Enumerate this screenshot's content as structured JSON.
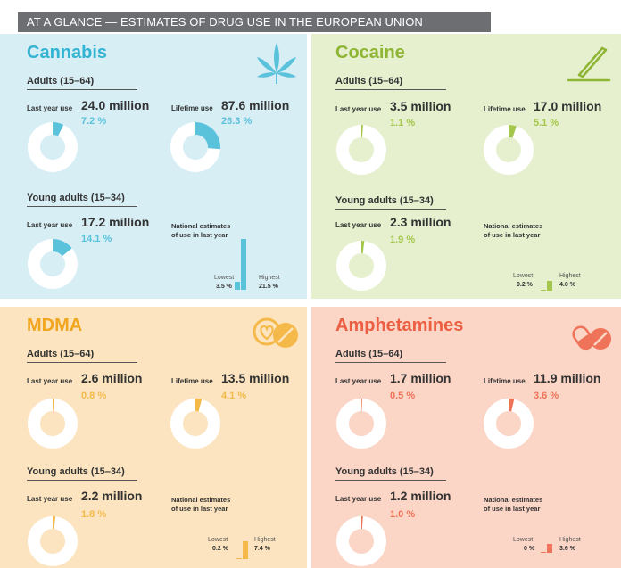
{
  "header": {
    "title": "AT A GLANCE — ESTIMATES OF DRUG USE IN THE EUROPEAN UNION"
  },
  "labels": {
    "adults": "Adults (15–64)",
    "young": "Young adults (15–34)",
    "last_year_use": "Last year use",
    "lifetime_use": "Lifetime use",
    "national_line1": "National estimates",
    "national_line2": "of use in last year",
    "lowest": "Lowest",
    "highest": "Highest"
  },
  "colors": {
    "cannabis": "#5bc2dc",
    "cocaine": "#a4c64a",
    "mdma": "#f5b94a",
    "amphetamines": "#ef7358"
  },
  "chart_data": [
    {
      "type": "pie",
      "drug": "Cannabis",
      "icon": "cannabis-leaf-icon",
      "adults": {
        "last_year": {
          "value": "24.0 million",
          "percent": 7.2,
          "percent_label": "7.2 %"
        },
        "lifetime": {
          "value": "87.6 million",
          "percent": 26.3,
          "percent_label": "26.3 %"
        }
      },
      "young_adults": {
        "last_year": {
          "value": "17.2 million",
          "percent": 14.1,
          "percent_label": "14.1 %"
        }
      },
      "national_range": {
        "lowest": 3.5,
        "lowest_label": "3.5 %",
        "highest": 21.5,
        "highest_label": "21.5 %"
      }
    },
    {
      "type": "pie",
      "drug": "Cocaine",
      "icon": "cocaine-straw-icon",
      "adults": {
        "last_year": {
          "value": "3.5 million",
          "percent": 1.1,
          "percent_label": "1.1 %"
        },
        "lifetime": {
          "value": "17.0 million",
          "percent": 5.1,
          "percent_label": "5.1 %"
        }
      },
      "young_adults": {
        "last_year": {
          "value": "2.3 million",
          "percent": 1.9,
          "percent_label": "1.9 %"
        }
      },
      "national_range": {
        "lowest": 0.2,
        "lowest_label": "0.2 %",
        "highest": 4.0,
        "highest_label": "4.0 %"
      }
    },
    {
      "type": "pie",
      "drug": "MDMA",
      "icon": "mdma-pills-icon",
      "adults": {
        "last_year": {
          "value": "2.6 million",
          "percent": 0.8,
          "percent_label": "0.8 %"
        },
        "lifetime": {
          "value": "13.5 million",
          "percent": 4.1,
          "percent_label": "4.1 %"
        }
      },
      "young_adults": {
        "last_year": {
          "value": "2.2 million",
          "percent": 1.8,
          "percent_label": "1.8 %"
        }
      },
      "national_range": {
        "lowest": 0.2,
        "lowest_label": "0.2 %",
        "highest": 7.4,
        "highest_label": "7.4 %"
      }
    },
    {
      "type": "pie",
      "drug": "Amphetamines",
      "icon": "amphetamine-pills-icon",
      "adults": {
        "last_year": {
          "value": "1.7 million",
          "percent": 0.5,
          "percent_label": "0.5 %"
        },
        "lifetime": {
          "value": "11.9 million",
          "percent": 3.6,
          "percent_label": "3.6 %"
        }
      },
      "young_adults": {
        "last_year": {
          "value": "1.2 million",
          "percent": 1.0,
          "percent_label": "1.0 %"
        }
      },
      "national_range": {
        "lowest": 0,
        "lowest_label": "0 %",
        "highest": 3.6,
        "highest_label": "3.6 %"
      }
    }
  ]
}
